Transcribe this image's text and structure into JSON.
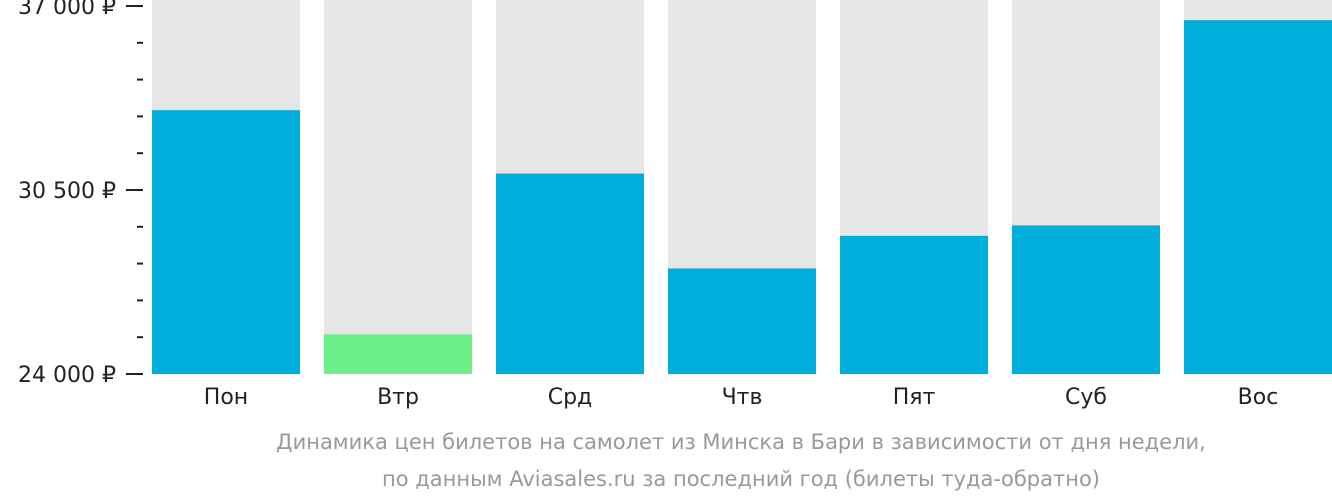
{
  "chart_data": {
    "type": "bar",
    "categories": [
      "Пон",
      "Втр",
      "Срд",
      "Чтв",
      "Пят",
      "Суб",
      "Вос"
    ],
    "values": [
      33320,
      25400,
      31080,
      27730,
      28880,
      29250,
      36500
    ],
    "ylim": [
      24000,
      37000
    ],
    "yticks": [
      {
        "value": 37000,
        "label": "37 000 ₽"
      },
      {
        "value": 30500,
        "label": "30 500 ₽"
      },
      {
        "value": 24000,
        "label": "24 000 ₽"
      }
    ],
    "minor_tick_step": 1300,
    "highlight_index": 1,
    "colors": {
      "bar": "#00AEDB",
      "bar_highlight": "#6BF089",
      "background_column": "#E6E6E6",
      "axis": "#222222"
    },
    "caption": [
      "Динамика цен билетов на самолет из Минска в Бари в зависимости от дня недели,",
      "по данным Aviasales.ru за последний год (билеты туда-обратно)"
    ]
  }
}
